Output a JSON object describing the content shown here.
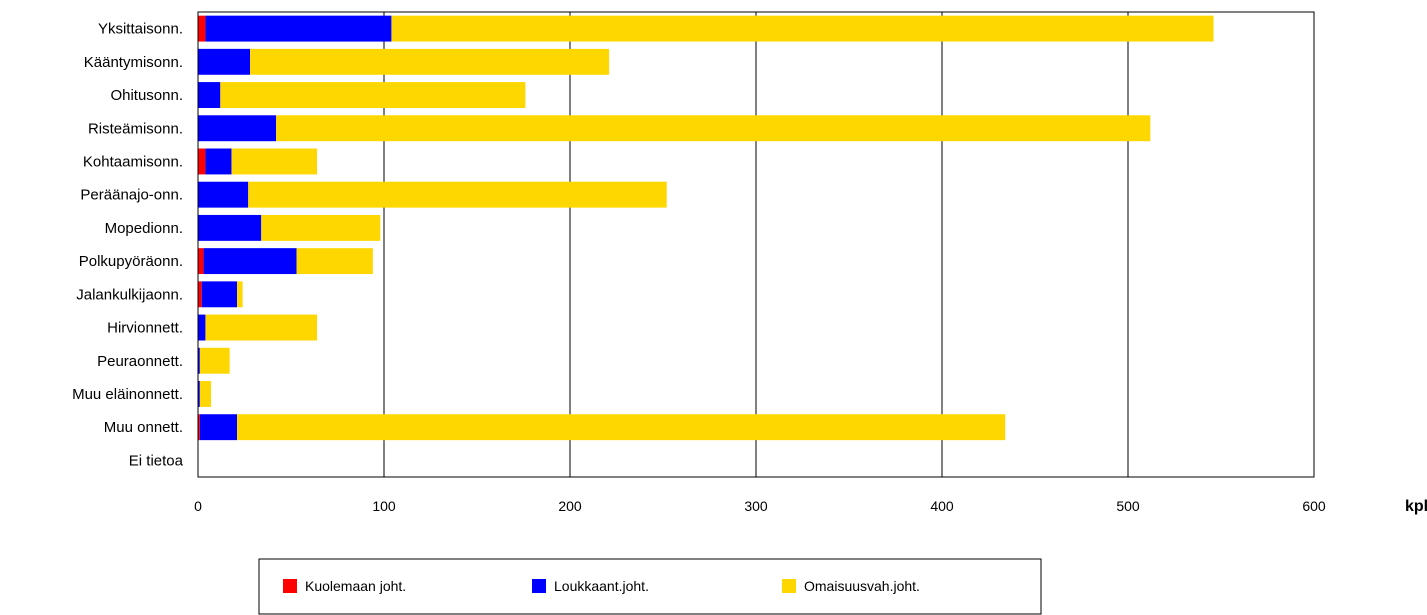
{
  "chart_data": {
    "type": "bar",
    "orientation": "horizontal",
    "stacked": true,
    "categories": [
      "Yksittaisonn.",
      "Kääntymisonn.",
      "Ohitusonn.",
      "Risteämisonn.",
      "Kohtaamisonn.",
      "Peräänajo-onn.",
      "Mopedionn.",
      "Polkupyöräonn.",
      "Jalankulkijaonn.",
      "Hirvionnett.",
      "Peuraonnett.",
      "Muu eläinonnett.",
      "Muu onnett.",
      "Ei tietoa"
    ],
    "series": [
      {
        "name": "Kuolemaan joht.",
        "color": "#ff0000",
        "values": [
          4,
          0,
          0,
          0,
          4,
          0,
          0,
          3,
          2,
          0,
          0,
          0,
          1,
          0
        ]
      },
      {
        "name": "Loukkaant.joht.",
        "color": "#0000ff",
        "values": [
          100,
          28,
          12,
          42,
          14,
          27,
          34,
          50,
          19,
          4,
          1,
          1,
          20,
          0
        ]
      },
      {
        "name": "Omaisuusvah.joht.",
        "color": "#ffd700",
        "values": [
          442,
          193,
          164,
          470,
          46,
          225,
          64,
          41,
          3,
          60,
          16,
          6,
          413,
          0
        ]
      }
    ],
    "xlim": [
      0,
      600
    ],
    "xticks": [
      "0",
      "100",
      "200",
      "300",
      "400",
      "500",
      "600"
    ],
    "xlabel": "kpl",
    "grid": "vertical",
    "legend_position": "bottom"
  }
}
